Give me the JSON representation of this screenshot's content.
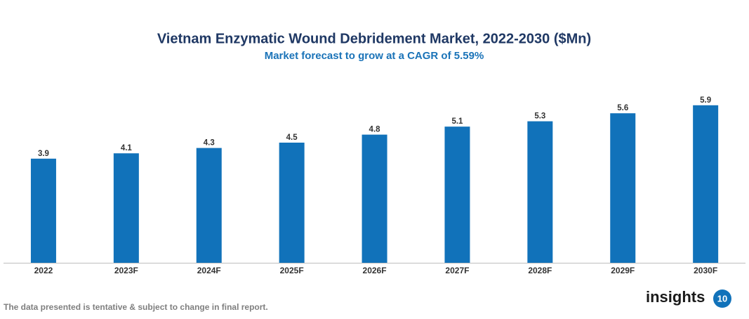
{
  "chart_data": {
    "type": "bar",
    "title": "Vietnam Enzymatic Wound Debridement Market, 2022-2030 ($Mn)",
    "subtitle": "Market forecast to grow at a CAGR of 5.59%",
    "categories": [
      "2022",
      "2023F",
      "2024F",
      "2025F",
      "2026F",
      "2027F",
      "2028F",
      "2029F",
      "2030F"
    ],
    "values": [
      3.9,
      4.1,
      4.3,
      4.5,
      4.8,
      5.1,
      5.3,
      5.6,
      5.9
    ],
    "color": "#1172ba"
  },
  "footer": {
    "note": "The data presented is tentative & subject to change in final report.",
    "logo": "insights",
    "logo_badge": "10"
  }
}
